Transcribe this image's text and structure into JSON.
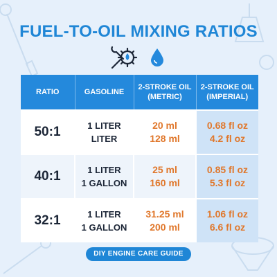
{
  "title": "FUEL-TO-OIL MIXING RATIOS",
  "icons": [
    "wrench-gear-icon",
    "oil-drop-icon",
    "small-drop-icon"
  ],
  "colors": {
    "accent_blue": "#1f86d6",
    "header_blue": "#2489dc",
    "oil_orange": "#e0772b",
    "background": "#e6f0fb"
  },
  "table": {
    "headers": {
      "ratio": "RATIO",
      "gasoline": "GASOLINE",
      "metric_1": "2-STROKE OIL",
      "metric_2": "(METRIC)",
      "imperial_1": "2-STROKE OIL",
      "imperial_2": "(IMPERIAL)"
    },
    "rows": [
      {
        "ratio": "50:1",
        "gas_1": "1 LITER",
        "gas_2": "LITER",
        "metric_1": "20 ml",
        "metric_2": "128 ml",
        "imperial_1": "0.68 fl oz",
        "imperial_2": "4.2 fl oz"
      },
      {
        "ratio": "40:1",
        "gas_1": "1 LITER",
        "gas_2": "1 GALLON",
        "metric_1": "25 ml",
        "metric_2": "160 ml",
        "imperial_1": "0.85 fl oz",
        "imperial_2": "5.3 fl oz"
      },
      {
        "ratio": "32:1",
        "gas_1": "1 LITER",
        "gas_2": "1 GALLON",
        "metric_1": "31.25 ml",
        "metric_2": "200 ml",
        "imperial_1": "1.06 fl oz",
        "imperial_2": "6.6 fl oz"
      }
    ]
  },
  "footer_badge": "DIY ENGINE CARE GUIDE"
}
